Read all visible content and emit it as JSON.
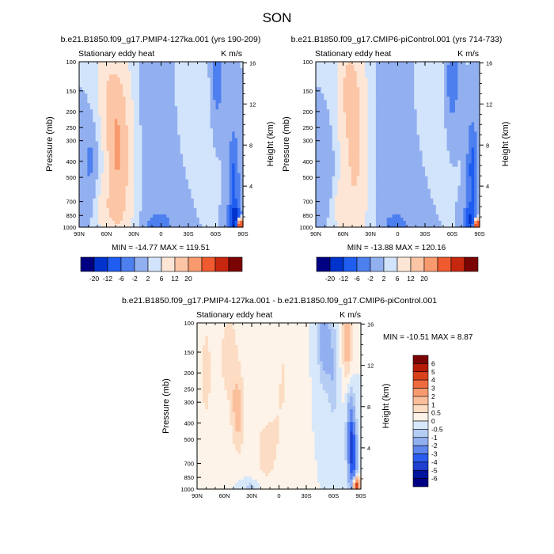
{
  "page_title": "SON",
  "colors": {
    "cmap_12": [
      "#000083",
      "#0033cc",
      "#1f5df0",
      "#4d7fef",
      "#92b0f0",
      "#d2e4fb",
      "#fde6d6",
      "#fcc6a6",
      "#f89a6e",
      "#ef5a2e",
      "#c8270f",
      "#7a0403"
    ],
    "cmap_diff": [
      "#000083",
      "#00149e",
      "#1f3fd1",
      "#2a5cf0",
      "#5f86ee",
      "#92b0f0",
      "#b5ccf3",
      "#d8e8fb",
      "#fdf3e8",
      "#fcdcc2",
      "#fbbf9c",
      "#f89a6e",
      "#ef6a3e",
      "#d9411c",
      "#b41b08",
      "#7a0403"
    ]
  },
  "chart_data": [
    {
      "id": "panel-a",
      "type": "heatmap",
      "title": "b.e21.B1850.f09_g17.PMIP4-127ka.001 (yrs 190-209)",
      "subtitle_left": "Stationary eddy heat",
      "subtitle_right": "K m/s",
      "xlabel": "",
      "ylabel": "Pressure (mb)",
      "ylabel_right": "Height (km)",
      "x_ticks": [
        "90N",
        "60N",
        "30N",
        "0",
        "30S",
        "60S",
        "90S"
      ],
      "x_tick_values": [
        90,
        60,
        30,
        0,
        -30,
        -60,
        -90
      ],
      "y_ticks": [
        "100",
        "150",
        "200",
        "250",
        "300",
        "400",
        "500",
        "700",
        "850",
        "1000"
      ],
      "y_tick_values": [
        100,
        150,
        200,
        250,
        300,
        400,
        500,
        700,
        850,
        1000
      ],
      "y_right_ticks": [
        "16",
        "12",
        "8",
        "4"
      ],
      "y_right_values": [
        16,
        12,
        8,
        4
      ],
      "stats_text": "MIN = -14.77   MAX = 119.51",
      "features": [
        {
          "lat": 46,
          "p": 380,
          "w": 10,
          "h": 0.95,
          "v": 9
        },
        {
          "lat": 50,
          "p": 290,
          "w": 6,
          "h": 0.55,
          "v": 5
        },
        {
          "lat": 62,
          "p": 130,
          "w": 7,
          "h": 0.4,
          "v": 3.5
        },
        {
          "lat": 78,
          "p": 400,
          "w": 5,
          "h": 0.35,
          "v": -2.5
        },
        {
          "lat": 62,
          "p": 800,
          "w": 6,
          "h": 0.25,
          "v": 3
        },
        {
          "lat": 5,
          "p": 250,
          "w": 15,
          "h": 1.4,
          "v": -1
        },
        {
          "lat": -33,
          "p": 140,
          "w": 14,
          "h": 0.6,
          "v": 0.8
        },
        {
          "lat": -62,
          "p": 120,
          "w": 4,
          "h": 0.35,
          "v": -5
        },
        {
          "lat": -80,
          "p": 500,
          "w": 3.5,
          "h": 0.4,
          "v": -7
        },
        {
          "lat": -81,
          "p": 900,
          "w": 4,
          "h": 0.15,
          "v": -16
        },
        {
          "lat": -87,
          "p": 980,
          "w": 2.2,
          "h": 0.06,
          "v": 45
        },
        {
          "lat": 2,
          "p": 960,
          "w": 9,
          "h": 0.1,
          "v": -4
        }
      ]
    },
    {
      "id": "panel-b",
      "type": "heatmap",
      "title": "b.e21.B1850.f09_g17.CMIP6-piControl.001 (yrs 714-733)",
      "subtitle_left": "Stationary eddy heat",
      "subtitle_right": "K m/s",
      "xlabel": "",
      "ylabel": "Pressure (mb)",
      "ylabel_right": "Height (km)",
      "x_ticks": [
        "90N",
        "60N",
        "30N",
        "0",
        "30S",
        "60S",
        "90S"
      ],
      "x_tick_values": [
        90,
        60,
        30,
        0,
        -30,
        -60,
        -90
      ],
      "y_ticks": [
        "100",
        "150",
        "200",
        "250",
        "300",
        "400",
        "500",
        "700",
        "850",
        "1000"
      ],
      "y_tick_values": [
        100,
        150,
        200,
        250,
        300,
        400,
        500,
        700,
        850,
        1000
      ],
      "y_right_ticks": [
        "16",
        "12",
        "8",
        "4"
      ],
      "y_right_values": [
        16,
        12,
        8,
        4
      ],
      "stats_text": "MIN = -13.88   MAX = 120.16",
      "features": [
        {
          "lat": 47,
          "p": 330,
          "w": 10,
          "h": 0.95,
          "v": 7
        },
        {
          "lat": 55,
          "p": 140,
          "w": 8,
          "h": 0.45,
          "v": 4.5
        },
        {
          "lat": 78,
          "p": 420,
          "w": 5,
          "h": 0.35,
          "v": -2
        },
        {
          "lat": 62,
          "p": 780,
          "w": 6,
          "h": 0.25,
          "v": 3
        },
        {
          "lat": 3,
          "p": 250,
          "w": 15,
          "h": 1.4,
          "v": -1
        },
        {
          "lat": -33,
          "p": 140,
          "w": 14,
          "h": 0.6,
          "v": 0.6
        },
        {
          "lat": -60,
          "p": 130,
          "w": 4,
          "h": 0.35,
          "v": -5
        },
        {
          "lat": -82,
          "p": 450,
          "w": 3.5,
          "h": 0.4,
          "v": -8
        },
        {
          "lat": -80,
          "p": 900,
          "w": 4,
          "h": 0.15,
          "v": -12
        },
        {
          "lat": -87,
          "p": 980,
          "w": 2.2,
          "h": 0.06,
          "v": 40
        },
        {
          "lat": 2,
          "p": 960,
          "w": 9,
          "h": 0.1,
          "v": -3
        }
      ]
    },
    {
      "id": "panel-diff",
      "type": "heatmap",
      "title": "b.e21.B1850.f09_g17.PMIP4-127ka.001 - b.e21.B1850.f09_g17.CMIP6-piControl.001",
      "subtitle_left": "Stationary eddy heat",
      "subtitle_right": "K m/s",
      "xlabel": "",
      "ylabel": "Pressure (mb)",
      "ylabel_right": "Height (km)",
      "x_ticks": [
        "90N",
        "60N",
        "30N",
        "0",
        "30S",
        "60S",
        "90S"
      ],
      "x_tick_values": [
        90,
        60,
        30,
        0,
        -30,
        -60,
        -90
      ],
      "y_ticks": [
        "100",
        "150",
        "200",
        "250",
        "300",
        "400",
        "500",
        "700",
        "850",
        "1000"
      ],
      "y_tick_values": [
        100,
        150,
        200,
        250,
        300,
        400,
        500,
        700,
        850,
        1000
      ],
      "y_right_ticks": [
        "16",
        "12",
        "8",
        "4"
      ],
      "y_right_values": [
        16,
        12,
        8,
        4
      ],
      "stats_text": "MIN = -10.51   MAX =   8.87",
      "features": [
        {
          "lat": 80,
          "p": 200,
          "w": 5,
          "h": 0.6,
          "v": 0.7
        },
        {
          "lat": 45,
          "p": 350,
          "w": 5,
          "h": 0.4,
          "v": 1.2
        },
        {
          "lat": 55,
          "p": 160,
          "w": 8,
          "h": 0.5,
          "v": 0.8
        },
        {
          "lat": 15,
          "p": 600,
          "w": 12,
          "h": 0.5,
          "v": 0.6
        },
        {
          "lat": -5,
          "p": 200,
          "w": 10,
          "h": 0.8,
          "v": 0.5
        },
        {
          "lat": -50,
          "p": 130,
          "w": 5,
          "h": 0.45,
          "v": -1.5
        },
        {
          "lat": -60,
          "p": 200,
          "w": 4,
          "h": 0.5,
          "v": -0.9
        },
        {
          "lat": -75,
          "p": 130,
          "w": 4,
          "h": 0.35,
          "v": 1.5
        },
        {
          "lat": -79,
          "p": 500,
          "w": 3,
          "h": 0.4,
          "v": -3.2
        },
        {
          "lat": -82,
          "p": 650,
          "w": 3,
          "h": 0.3,
          "v": -2.5
        },
        {
          "lat": -85,
          "p": 950,
          "w": 2.5,
          "h": 0.08,
          "v": 5
        },
        {
          "lat": 30,
          "p": 980,
          "w": 8,
          "h": 0.08,
          "v": -0.8
        }
      ]
    }
  ],
  "colorbar_top_left": {
    "labels": [
      "-20",
      "-12",
      "-6",
      "-2",
      "2",
      "6",
      "12",
      "20"
    ]
  },
  "colorbar_top_right": {
    "labels": [
      "-20",
      "-12",
      "-6",
      "-2",
      "2",
      "6",
      "12",
      "20"
    ]
  },
  "colorbar_diff": {
    "labels": [
      "6",
      "5",
      "4",
      "3",
      "2",
      "1",
      "0.5",
      "0",
      "-0.5",
      "-1",
      "-2",
      "-3",
      "-4",
      "-5",
      "-6"
    ]
  }
}
